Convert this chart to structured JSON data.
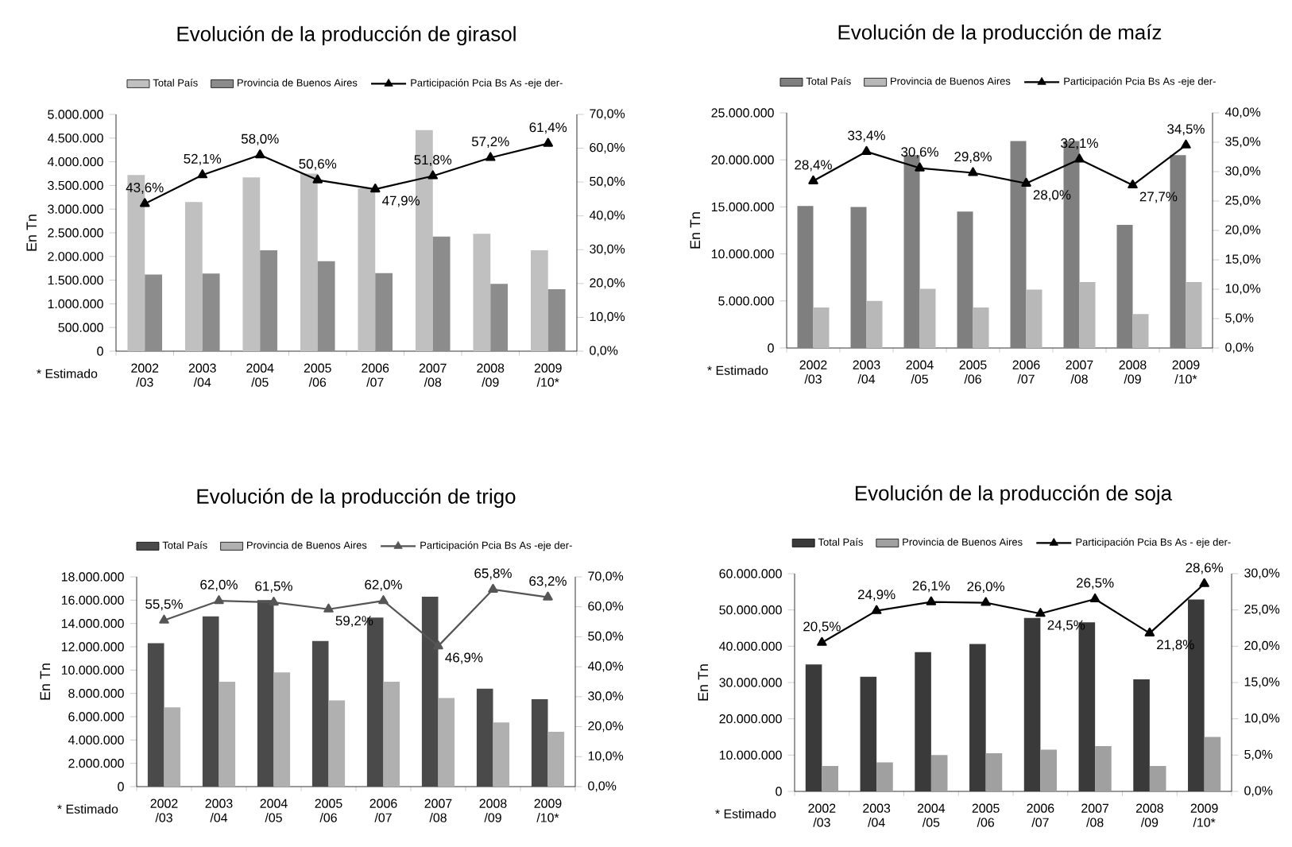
{
  "chart_data": [
    {
      "type": "bar",
      "title": "Evolución de la producción de girasol",
      "ylabel": "En Tn",
      "legend": "top",
      "annotations": [
        "* Estimado"
      ],
      "categories": [
        "2002 /03",
        "2003 /04",
        "2004 /05",
        "2005 /06",
        "2006 /07",
        "2007 /08",
        "2008 /09",
        "2009 /10*"
      ],
      "series": [
        {
          "name": "Total País",
          "color": "#c0c0c0",
          "values": [
            3720000,
            3150000,
            3670000,
            3750000,
            3440000,
            4670000,
            2480000,
            2130000
          ]
        },
        {
          "name": "Provincia de Buenos Aires",
          "color": "#8c8c8c",
          "values": [
            1620000,
            1640000,
            2130000,
            1900000,
            1650000,
            2420000,
            1420000,
            1310000
          ]
        },
        {
          "name": "Participación Pcia Bs As -eje der-",
          "type": "line",
          "axis": "y2",
          "color": "#000000",
          "marker": "triangle",
          "values": [
            43.6,
            52.1,
            58.0,
            50.6,
            47.9,
            51.8,
            57.2,
            61.4
          ],
          "value_labels": [
            "43,6%",
            "52,1%",
            "58,0%",
            "50,6%",
            "47,9%",
            "51,8%",
            "57,2%",
            "61,4%"
          ]
        }
      ],
      "ylim": [
        0,
        5000000
      ],
      "yticks": [
        0,
        {
          "value": 500000,
          "label": "500.000"
        },
        {
          "value": 1000000,
          "label": "1.000.000"
        },
        {
          "value": 1500000,
          "label": "1.500.000"
        },
        {
          "value": 2000000,
          "label": "2.000.000"
        },
        {
          "value": 2500000,
          "label": "2.500.000"
        },
        {
          "value": 3000000,
          "label": "3.000.000"
        },
        {
          "value": 3500000,
          "label": "3.500.000"
        },
        {
          "value": 4000000,
          "label": "4.000.000"
        },
        {
          "value": 4500000,
          "label": "4.500.000"
        },
        {
          "value": 5000000,
          "label": "5.000.000"
        }
      ],
      "y2lim": [
        0,
        70
      ],
      "y2ticks": [
        {
          "value": 0,
          "label": "0,0%"
        },
        {
          "value": 10,
          "label": "10,0%"
        },
        {
          "value": 20,
          "label": "20,0%"
        },
        {
          "value": 30,
          "label": "30,0%"
        },
        {
          "value": 40,
          "label": "40,0%"
        },
        {
          "value": 50,
          "label": "50,0%"
        },
        {
          "value": 60,
          "label": "60,0%"
        },
        {
          "value": 70,
          "label": "70,0%"
        }
      ]
    },
    {
      "type": "bar",
      "title": "Evolución de la producción de maíz",
      "ylabel": "En Tn",
      "legend": "top",
      "annotations": [
        "* Estimado"
      ],
      "categories": [
        "2002 /03",
        "2003 /04",
        "2004 /05",
        "2005 /06",
        "2006 /07",
        "2007 /08",
        "2008 /09",
        "2009 /10*"
      ],
      "series": [
        {
          "name": "Total País",
          "color": "#7f7f7f",
          "values": [
            15100000,
            15000000,
            20500000,
            14500000,
            22000000,
            22000000,
            13100000,
            20500000
          ]
        },
        {
          "name": "Provincia de Buenos Aires",
          "color": "#b8b8b8",
          "values": [
            4300000,
            5000000,
            6300000,
            4300000,
            6200000,
            7000000,
            3600000,
            7000000
          ]
        },
        {
          "name": "Participación Pcia Bs As -eje der-",
          "type": "line",
          "axis": "y2",
          "color": "#000000",
          "marker": "triangle",
          "values": [
            28.4,
            33.4,
            30.6,
            29.8,
            28.0,
            32.1,
            27.7,
            34.5
          ],
          "value_labels": [
            "28,4%",
            "33,4%",
            "30,6%",
            "29,8%",
            "28,0%",
            "32,1%",
            "27,7%",
            "34,5%"
          ]
        }
      ],
      "ylim": [
        0,
        25000000
      ],
      "yticks": [
        0,
        {
          "value": 5000000,
          "label": "5.000.000"
        },
        {
          "value": 10000000,
          "label": "10.000.000"
        },
        {
          "value": 15000000,
          "label": "15.000.000"
        },
        {
          "value": 20000000,
          "label": "20.000.000"
        },
        {
          "value": 25000000,
          "label": "25.000.000"
        }
      ],
      "y2lim": [
        0,
        40
      ],
      "y2ticks": [
        {
          "value": 0,
          "label": "0,0%"
        },
        {
          "value": 5,
          "label": "5,0%"
        },
        {
          "value": 10,
          "label": "10,0%"
        },
        {
          "value": 15,
          "label": "15,0%"
        },
        {
          "value": 20,
          "label": "20,0%"
        },
        {
          "value": 25,
          "label": "25,0%"
        },
        {
          "value": 30,
          "label": "30,0%"
        },
        {
          "value": 35,
          "label": "35,0%"
        },
        {
          "value": 40,
          "label": "40,0%"
        }
      ]
    },
    {
      "type": "bar",
      "title": "Evolución de la producción de trigo",
      "ylabel": "En Tn",
      "legend": "top",
      "annotations": [
        "* Estimado"
      ],
      "categories": [
        "2002 /03",
        "2003 /04",
        "2004 /05",
        "2005 /06",
        "2006 /07",
        "2007 /08",
        "2008 /09",
        "2009 /10*"
      ],
      "series": [
        {
          "name": "Total País",
          "color": "#4a4a4a",
          "values": [
            12300000,
            14600000,
            16000000,
            12500000,
            14500000,
            16300000,
            8400000,
            7500000
          ]
        },
        {
          "name": "Provincia de Buenos Aires",
          "color": "#b0b0b0",
          "values": [
            6800000,
            9000000,
            9800000,
            7400000,
            9000000,
            7600000,
            5500000,
            4700000
          ]
        },
        {
          "name": "Participación Pcia Bs As -eje der-",
          "type": "line",
          "axis": "y2",
          "color": "#555555",
          "marker": "triangle",
          "values": [
            55.5,
            62.0,
            61.5,
            59.2,
            62.0,
            46.9,
            65.8,
            63.2
          ],
          "value_labels": [
            "55,5%",
            "62,0%",
            "61,5%",
            "59,2%",
            "62,0%",
            "46,9%",
            "65,8%",
            "63,2%"
          ]
        }
      ],
      "ylim": [
        0,
        18000000
      ],
      "yticks": [
        0,
        {
          "value": 2000000,
          "label": "2.000.000"
        },
        {
          "value": 4000000,
          "label": "4.000.000"
        },
        {
          "value": 6000000,
          "label": "6.000.000"
        },
        {
          "value": 8000000,
          "label": "8.000.000"
        },
        {
          "value": 10000000,
          "label": "10.000.000"
        },
        {
          "value": 12000000,
          "label": "12.000.000"
        },
        {
          "value": 14000000,
          "label": "14.000.000"
        },
        {
          "value": 16000000,
          "label": "16.000.000"
        },
        {
          "value": 18000000,
          "label": "18.000.000"
        }
      ],
      "y2lim": [
        0,
        70
      ],
      "y2ticks": [
        {
          "value": 0,
          "label": "0,0%"
        },
        {
          "value": 10,
          "label": "10,0%"
        },
        {
          "value": 20,
          "label": "20,0%"
        },
        {
          "value": 30,
          "label": "30,0%"
        },
        {
          "value": 40,
          "label": "40,0%"
        },
        {
          "value": 50,
          "label": "50,0%"
        },
        {
          "value": 60,
          "label": "60,0%"
        },
        {
          "value": 70,
          "label": "70,0%"
        }
      ]
    },
    {
      "type": "bar",
      "title": "Evolución de la producción de soja",
      "ylabel": "En Tn",
      "legend": "top",
      "annotations": [
        "* Estimado"
      ],
      "categories": [
        "2002 /03",
        "2003 /04",
        "2004 /05",
        "2005 /06",
        "2006 /07",
        "2007 /08",
        "2008 /09",
        "2009 /10*"
      ],
      "series": [
        {
          "name": "Total País",
          "color": "#3a3a3a",
          "values": [
            35000000,
            31600000,
            38400000,
            40600000,
            47800000,
            46600000,
            30900000,
            52900000
          ]
        },
        {
          "name": "Provincia de Buenos Aires",
          "color": "#a0a0a0",
          "values": [
            7000000,
            8000000,
            10000000,
            10500000,
            11500000,
            12500000,
            7000000,
            15000000
          ]
        },
        {
          "name": "Participación Pcia Bs As - eje der-",
          "type": "line",
          "axis": "y2",
          "color": "#000000",
          "marker": "triangle",
          "values": [
            20.5,
            24.9,
            26.1,
            26.0,
            24.5,
            26.5,
            21.8,
            28.6
          ],
          "value_labels": [
            "20,5%",
            "24,9%",
            "26,1%",
            "26,0%",
            "24,5%",
            "26,5%",
            "21,8%",
            "28,6%"
          ]
        }
      ],
      "ylim": [
        0,
        60000000
      ],
      "yticks": [
        0,
        {
          "value": 10000000,
          "label": "10.000.000"
        },
        {
          "value": 20000000,
          "label": "20.000.000"
        },
        {
          "value": 30000000,
          "label": "30.000.000"
        },
        {
          "value": 40000000,
          "label": "40.000.000"
        },
        {
          "value": 50000000,
          "label": "50.000.000"
        },
        {
          "value": 60000000,
          "label": "60.000.000"
        }
      ],
      "y2lim": [
        0,
        30
      ],
      "y2ticks": [
        {
          "value": 0,
          "label": "0,0%"
        },
        {
          "value": 5,
          "label": "5,0%"
        },
        {
          "value": 10,
          "label": "10,0%"
        },
        {
          "value": 15,
          "label": "15,0%"
        },
        {
          "value": 20,
          "label": "20,0%"
        },
        {
          "value": 25,
          "label": "25,0%"
        },
        {
          "value": 30,
          "label": "30,0%"
        }
      ]
    }
  ]
}
